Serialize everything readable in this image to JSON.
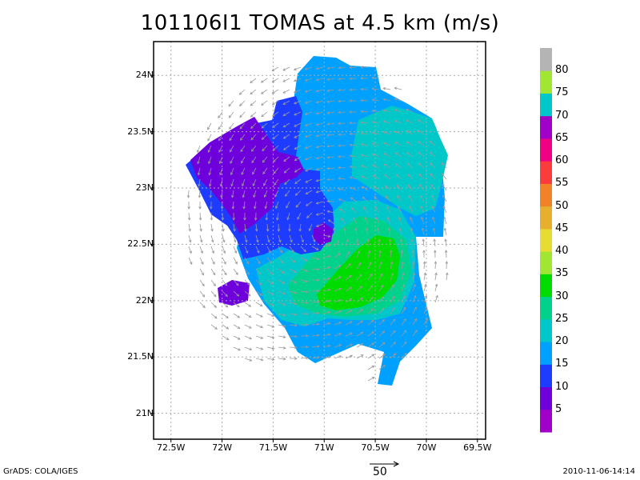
{
  "title": "101106I1 TOMAS at 4.5 km (m/s)",
  "footer": {
    "left": "GrADS: COLA/IGES",
    "right": "2010-11-06-14:14",
    "reference_vector_label": "50"
  },
  "map": {
    "lon_range": [
      -72.67,
      -69.42
    ],
    "lat_range": [
      20.77,
      24.3
    ],
    "y_ticks": [
      {
        "value": 24.0,
        "label": "24N"
      },
      {
        "value": 23.5,
        "label": "23.5N"
      },
      {
        "value": 23.0,
        "label": "23N"
      },
      {
        "value": 22.5,
        "label": "22.5N"
      },
      {
        "value": 22.0,
        "label": "22N"
      },
      {
        "value": 21.5,
        "label": "21.5N"
      },
      {
        "value": 21.0,
        "label": "21N"
      }
    ],
    "x_ticks": [
      {
        "value": -72.5,
        "label": "72.5W"
      },
      {
        "value": -72.0,
        "label": "72W"
      },
      {
        "value": -71.5,
        "label": "71.5W"
      },
      {
        "value": -71.0,
        "label": "71W"
      },
      {
        "value": -70.5,
        "label": "70.5W"
      },
      {
        "value": -70.0,
        "label": "70W"
      },
      {
        "value": -69.5,
        "label": "69.5W"
      }
    ],
    "grid": true
  },
  "colorbar": {
    "colors": [
      "#a000c8",
      "#6e00dc",
      "#1e3cff",
      "#00a0ff",
      "#00c8c8",
      "#00d28c",
      "#00dc00",
      "#a0e632",
      "#e6dc32",
      "#e6af2d",
      "#f08228",
      "#fa3c3c",
      "#f00082",
      "#a000c8",
      "#00c8c8",
      "#a0e632",
      "#b4b4b4"
    ],
    "labels": [
      "5",
      "10",
      "15",
      "20",
      "25",
      "30",
      "35",
      "40",
      "45",
      "50",
      "55",
      "60",
      "65",
      "70",
      "75",
      "80"
    ]
  },
  "chart_data": {
    "type": "heatmap",
    "title": "101106I1 TOMAS at 4.5 km (m/s)",
    "xlabel": "",
    "ylabel": "",
    "xlim": [
      -72.67,
      -69.42
    ],
    "ylim": [
      20.77,
      24.3
    ],
    "regions": [
      {
        "level": "0-10",
        "color": "#6e00dc",
        "centroid": [
          -71.95,
          23.25
        ]
      },
      {
        "level": "10-15",
        "color": "#1e3cff",
        "centroid": [
          -71.55,
          22.95
        ]
      },
      {
        "level": "15-20",
        "color": "#00a0ff",
        "centroid": [
          -70.7,
          23.7
        ]
      },
      {
        "level": "20-25",
        "color": "#00c8c8",
        "centroid": [
          -70.1,
          23.4
        ]
      },
      {
        "level": "25-30",
        "color": "#00d28c",
        "centroid": [
          -70.7,
          22.4
        ]
      },
      {
        "level": "30-35",
        "color": "#00dc00",
        "centroid": [
          -70.5,
          22.1
        ]
      }
    ],
    "wind_center": [
      -71.0,
      22.6
    ],
    "reference_vector_ms": 50
  }
}
